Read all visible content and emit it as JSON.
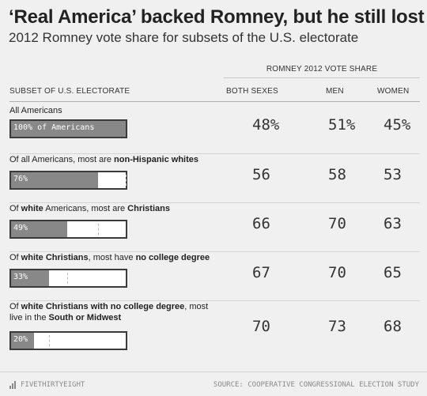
{
  "title": "‘Real America’ backed Romney, but he still lost",
  "subtitle": "2012 Romney vote share for subsets of the U.S. electorate",
  "group_header": "ROMNEY 2012 VOTE SHARE",
  "columns": {
    "subset": "SUBSET OF U.S. ELECTORATE",
    "both": "BOTH SEXES",
    "men": "MEN",
    "women": "WOMEN"
  },
  "chart_data": {
    "type": "table",
    "rows": [
      {
        "label_parts": [
          {
            "text": "All Americans",
            "bold": false
          }
        ],
        "bar_label": "100% of Americans",
        "share_pct": 100,
        "both": "48%",
        "men": "51%",
        "women": "45%"
      },
      {
        "label_parts": [
          {
            "text": "Of all Americans, most are ",
            "bold": false
          },
          {
            "text": "non-Hispanic whites",
            "bold": true
          }
        ],
        "bar_label": "76%",
        "share_pct": 76,
        "both": "56",
        "men": "58",
        "women": "53"
      },
      {
        "label_parts": [
          {
            "text": "Of ",
            "bold": false
          },
          {
            "text": "white",
            "bold": true
          },
          {
            "text": " Americans, most are ",
            "bold": false
          },
          {
            "text": "Christians",
            "bold": true
          }
        ],
        "bar_label": "49%",
        "share_pct": 49,
        "both": "66",
        "men": "70",
        "women": "63"
      },
      {
        "label_parts": [
          {
            "text": "Of ",
            "bold": false
          },
          {
            "text": "white Christians",
            "bold": true
          },
          {
            "text": ", most have ",
            "bold": false
          },
          {
            "text": "no college degree",
            "bold": true
          }
        ],
        "bar_label": "33%",
        "share_pct": 33,
        "both": "67",
        "men": "70",
        "women": "65"
      },
      {
        "label_parts": [
          {
            "text": "Of ",
            "bold": false
          },
          {
            "text": "white Christians with no college degree",
            "bold": true
          },
          {
            "text": ", most live in the ",
            "bold": false
          },
          {
            "text": "South or Midwest",
            "bold": true
          }
        ],
        "bar_label": "20%",
        "share_pct": 20,
        "both": "70",
        "men": "73",
        "women": "68"
      }
    ]
  },
  "footer": {
    "brand": "FIVETHIRTYEIGHT",
    "source": "SOURCE: COOPERATIVE CONGRESSIONAL ELECTION STUDY"
  },
  "colors": {
    "bar_fill": "#888888",
    "bar_border": "#3a3a3a",
    "background": "#f0f0f0"
  },
  "icons": {
    "brand_logo": "bar-chart-logo-icon"
  }
}
